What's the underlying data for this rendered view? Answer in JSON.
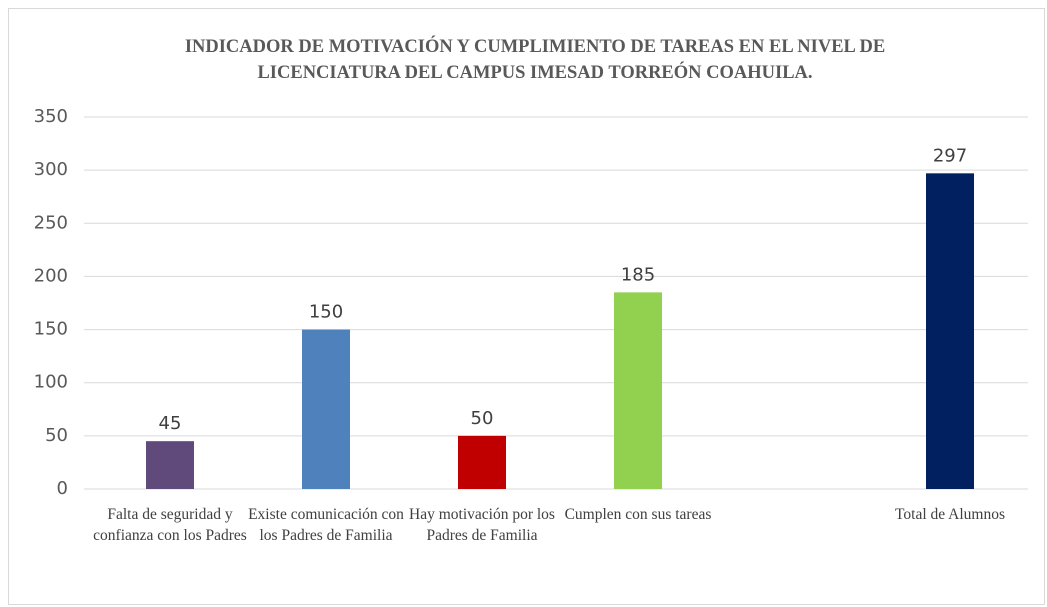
{
  "chart_data": {
    "type": "bar",
    "title": "INDICADOR DE MOTIVACIÓN Y CUMPLIMIENTO DE TAREAS EN EL NIVEL DE LICENCIATURA DEL CAMPUS IMESAD TORREÓN COAHUILA.",
    "categories": [
      "Falta de seguridad y confianza con los Padres",
      "Existe comunicación con los Padres de Familia",
      "Hay  motivación por los Padres de Familia",
      "Cumplen con sus tareas",
      null,
      "Total de Alumnos"
    ],
    "values": [
      45,
      150,
      50,
      185,
      null,
      297
    ],
    "colors": [
      "#604a7b",
      "#4f81bd",
      "#c00000",
      "#92d050",
      null,
      "#002060"
    ],
    "ylim": [
      0,
      350
    ],
    "yticks": [
      0,
      50,
      100,
      150,
      200,
      250,
      300,
      350
    ],
    "grid": true
  }
}
